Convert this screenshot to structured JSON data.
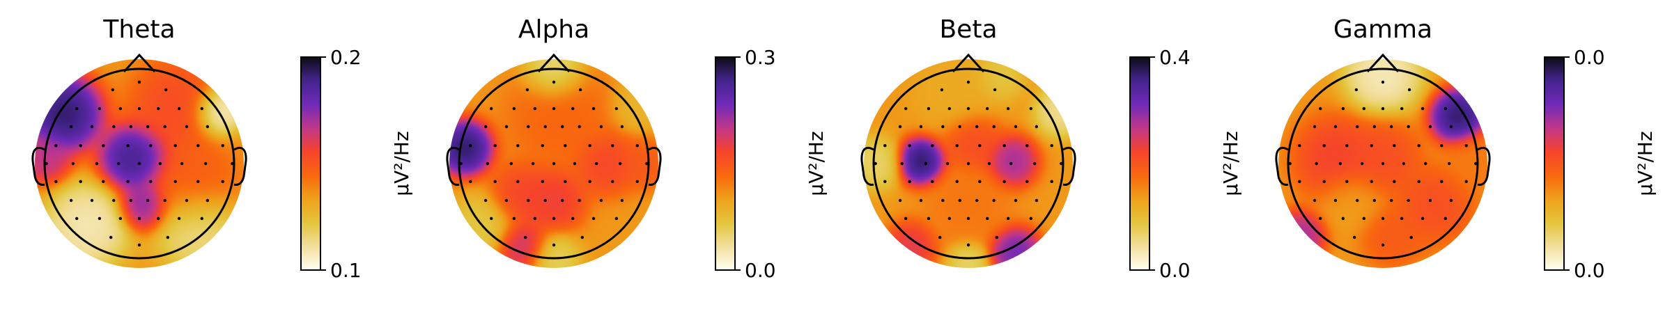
{
  "chart_data": [
    {
      "type": "heatmap",
      "subtype": "eeg-topomap",
      "title": "Theta",
      "colorbar": {
        "ticks": [
          "0.1",
          "0.2"
        ],
        "vmin": 0.1,
        "vmax": 0.2,
        "label": "µV²/Hz"
      },
      "blobs": [
        {
          "x": -0.72,
          "y": 0.48,
          "value": 0.2,
          "sigma": 0.18
        },
        {
          "x": -0.05,
          "y": 0.05,
          "value": 0.195,
          "sigma": 0.16
        },
        {
          "x": 0.05,
          "y": -0.4,
          "value": 0.18,
          "sigma": 0.12
        },
        {
          "x": -0.9,
          "y": 0.05,
          "value": 0.17,
          "sigma": 0.12
        },
        {
          "x": 0.35,
          "y": 0.55,
          "value": 0.155,
          "sigma": 0.22
        },
        {
          "x": 0.5,
          "y": -0.2,
          "value": 0.15,
          "sigma": 0.22
        },
        {
          "x": -0.5,
          "y": -0.6,
          "value": 0.105,
          "sigma": 0.2
        },
        {
          "x": 0.55,
          "y": -0.6,
          "value": 0.11,
          "sigma": 0.2
        },
        {
          "x": 0.75,
          "y": 0.5,
          "value": 0.1,
          "sigma": 0.12
        }
      ]
    },
    {
      "type": "heatmap",
      "subtype": "eeg-topomap",
      "title": "Alpha",
      "colorbar": {
        "ticks": [
          "0.0",
          "0.3"
        ],
        "vmin": 0.0,
        "vmax": 0.3,
        "label": "µV²/Hz"
      },
      "blobs": [
        {
          "x": -0.85,
          "y": 0.15,
          "value": 0.3,
          "sigma": 0.13
        },
        {
          "x": 0.0,
          "y": -0.35,
          "value": 0.18,
          "sigma": 0.15
        },
        {
          "x": 0.5,
          "y": 0.0,
          "value": 0.17,
          "sigma": 0.15
        },
        {
          "x": -0.3,
          "y": -0.3,
          "value": 0.17,
          "sigma": 0.15
        },
        {
          "x": 0.05,
          "y": 0.45,
          "value": 0.14,
          "sigma": 0.25
        },
        {
          "x": -0.3,
          "y": -0.8,
          "value": 0.2,
          "sigma": 0.12
        },
        {
          "x": 0.85,
          "y": 0.0,
          "value": 0.15,
          "sigma": 0.12
        },
        {
          "x": 0.0,
          "y": 0.88,
          "value": 0.03,
          "sigma": 0.14
        },
        {
          "x": 0.0,
          "y": -0.92,
          "value": 0.05,
          "sigma": 0.12
        },
        {
          "x": 0.8,
          "y": 0.55,
          "value": 0.08,
          "sigma": 0.12
        },
        {
          "x": -0.7,
          "y": -0.6,
          "value": 0.06,
          "sigma": 0.15
        }
      ]
    },
    {
      "type": "heatmap",
      "subtype": "eeg-topomap",
      "title": "Beta",
      "colorbar": {
        "ticks": [
          "0.0",
          "0.4"
        ],
        "vmin": 0.0,
        "vmax": 0.4,
        "label": "µV²/Hz"
      },
      "blobs": [
        {
          "x": -0.45,
          "y": 0.02,
          "value": 0.4,
          "sigma": 0.11
        },
        {
          "x": 0.42,
          "y": 0.02,
          "value": 0.3,
          "sigma": 0.12
        },
        {
          "x": 0.45,
          "y": -0.85,
          "value": 0.33,
          "sigma": 0.12
        },
        {
          "x": -0.55,
          "y": -0.8,
          "value": 0.25,
          "sigma": 0.12
        },
        {
          "x": 0.05,
          "y": 0.2,
          "value": 0.22,
          "sigma": 0.14
        },
        {
          "x": 0.0,
          "y": -0.4,
          "value": 0.17,
          "sigma": 0.2
        },
        {
          "x": -0.1,
          "y": 0.7,
          "value": 0.12,
          "sigma": 0.2
        },
        {
          "x": -0.88,
          "y": 0.0,
          "value": 0.06,
          "sigma": 0.12
        },
        {
          "x": 0.88,
          "y": 0.5,
          "value": 0.04,
          "sigma": 0.12
        },
        {
          "x": 0.0,
          "y": -0.95,
          "value": 0.06,
          "sigma": 0.1
        },
        {
          "x": 0.3,
          "y": 0.85,
          "value": 0.08,
          "sigma": 0.12
        }
      ]
    },
    {
      "type": "heatmap",
      "subtype": "eeg-topomap",
      "title": "Gamma",
      "colorbar": {
        "ticks": [
          "0.0",
          "0.0"
        ],
        "vmin": 0.0,
        "vmax": 0.012,
        "label": "µV²/Hz"
      },
      "blobs": [
        {
          "x": 0.72,
          "y": 0.45,
          "value": 0.012,
          "sigma": 0.13
        },
        {
          "x": -0.8,
          "y": -0.7,
          "value": 0.009,
          "sigma": 0.12
        },
        {
          "x": -0.45,
          "y": 0.05,
          "value": 0.007,
          "sigma": 0.2
        },
        {
          "x": 0.0,
          "y": 0.05,
          "value": 0.0065,
          "sigma": 0.18
        },
        {
          "x": 0.5,
          "y": -0.4,
          "value": 0.0065,
          "sigma": 0.18
        },
        {
          "x": 0.1,
          "y": -0.7,
          "value": 0.006,
          "sigma": 0.15
        },
        {
          "x": 0.0,
          "y": 0.85,
          "value": 0.0005,
          "sigma": 0.18
        },
        {
          "x": -0.3,
          "y": -0.35,
          "value": 0.004,
          "sigma": 0.15
        },
        {
          "x": 0.88,
          "y": 0.0,
          "value": 0.005,
          "sigma": 0.15
        }
      ]
    }
  ],
  "colors": {
    "colormap": [
      "#fffff2",
      "#f2df9d",
      "#e3c53c",
      "#efa11b",
      "#f8680e",
      "#f6442c",
      "#c0378a",
      "#6f2ab8",
      "#45248e",
      "#0c0c14"
    ],
    "electrode": "#000000",
    "outline": "#000000"
  }
}
